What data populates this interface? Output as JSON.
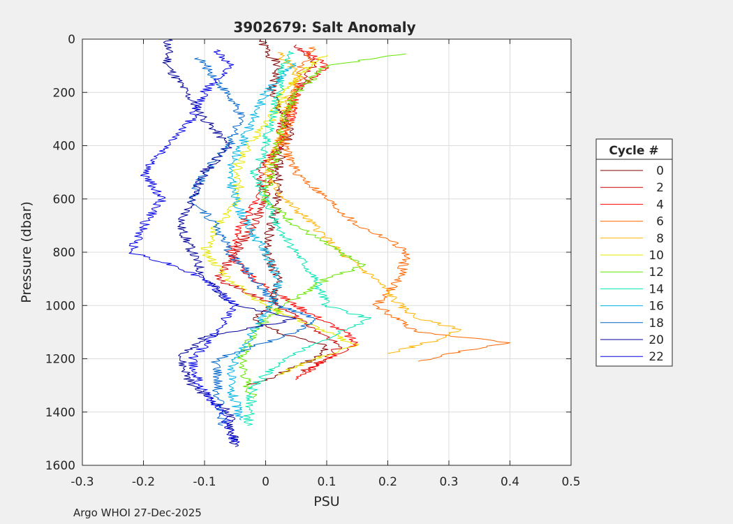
{
  "footer": "Argo WHOI 27-Dec-2025",
  "chart_data": {
    "type": "line",
    "title": "3902679: Salt Anomaly",
    "xlabel": "PSU",
    "ylabel": "Pressure (dbar)",
    "xlim": [
      -0.3,
      0.5
    ],
    "ylim": [
      0,
      1600
    ],
    "y_reversed": true,
    "grid": true,
    "xticks": [
      "-0.3",
      "-0.2",
      "-0.1",
      "0",
      "0.1",
      "0.2",
      "0.3",
      "0.4",
      "0.5"
    ],
    "yticks": [
      "0",
      "200",
      "400",
      "600",
      "800",
      "1000",
      "1200",
      "1400",
      "1600"
    ],
    "legend": {
      "title": "Cycle #",
      "placement": "outside-right",
      "entries": [
        {
          "label": "0",
          "color": "#800000"
        },
        {
          "label": "2",
          "color": "#cc0000"
        },
        {
          "label": "4",
          "color": "#ff0000"
        },
        {
          "label": "6",
          "color": "#ff6600"
        },
        {
          "label": "8",
          "color": "#ffb300"
        },
        {
          "label": "10",
          "color": "#e6e600"
        },
        {
          "label": "12",
          "color": "#66e600"
        },
        {
          "label": "14",
          "color": "#00e6b3"
        },
        {
          "label": "16",
          "color": "#00b3e6"
        },
        {
          "label": "18",
          "color": "#0066cc"
        },
        {
          "label": "20",
          "color": "#000099"
        },
        {
          "label": "22",
          "color": "#0000e6"
        }
      ]
    },
    "series": [
      {
        "name": "0",
        "color": "#800000",
        "x": [
          -0.01,
          0.02,
          0.01,
          0.03,
          0.04,
          0.03,
          0.02,
          0.02,
          0.01,
          0.0,
          0.02,
          0.01,
          -0.02,
          0.02,
          0.1,
          0.08,
          0.02,
          -0.03
        ],
        "y": [
          0,
          100,
          200,
          300,
          350,
          400,
          500,
          600,
          700,
          800,
          900,
          1000,
          1050,
          1100,
          1150,
          1200,
          1260,
          1300
        ]
      },
      {
        "name": "2",
        "color": "#cc0000",
        "x": [
          0.05,
          0.08,
          0.05,
          0.03,
          0.02,
          -0.01,
          0.0,
          -0.02,
          -0.05,
          -0.08,
          0.02,
          0.09,
          0.12,
          0.1,
          0.06
        ],
        "y": [
          20,
          100,
          200,
          300,
          400,
          500,
          600,
          700,
          800,
          900,
          1000,
          1100,
          1150,
          1200,
          1250
        ]
      },
      {
        "name": "4",
        "color": "#ff0000",
        "x": [
          0.06,
          0.1,
          0.05,
          0.04,
          0.02,
          0.01,
          -0.01,
          -0.04,
          -0.06,
          -0.02,
          0.05,
          0.13,
          0.15,
          0.1,
          0.05
        ],
        "y": [
          40,
          100,
          200,
          300,
          400,
          500,
          600,
          700,
          800,
          900,
          1000,
          1100,
          1150,
          1200,
          1280
        ]
      },
      {
        "name": "6",
        "color": "#ff6600",
        "x": [
          0.08,
          0.06,
          0.05,
          0.04,
          0.03,
          0.05,
          0.1,
          0.15,
          0.2,
          0.23,
          0.22,
          0.18,
          0.25,
          0.4,
          0.3,
          0.25
        ],
        "y": [
          30,
          100,
          200,
          300,
          400,
          500,
          600,
          700,
          750,
          800,
          900,
          1000,
          1100,
          1140,
          1180,
          1210
        ]
      },
      {
        "name": "8",
        "color": "#ffb300",
        "x": [
          0.02,
          0.05,
          0.04,
          0.03,
          0.02,
          0.0,
          0.03,
          0.08,
          0.12,
          0.18,
          0.22,
          0.25,
          0.32,
          0.28,
          0.2
        ],
        "y": [
          50,
          120,
          200,
          300,
          400,
          500,
          600,
          700,
          800,
          900,
          1000,
          1050,
          1090,
          1130,
          1180
        ]
      },
      {
        "name": "10",
        "color": "#e6e600",
        "x": [
          0.1,
          0.06,
          0.03,
          0.01,
          -0.03,
          -0.05,
          -0.04,
          -0.08,
          -0.1,
          -0.06,
          0.0,
          0.05,
          0.1,
          0.15,
          0.08,
          0.02
        ],
        "y": [
          60,
          120,
          200,
          300,
          400,
          500,
          600,
          700,
          800,
          900,
          1000,
          1050,
          1100,
          1150,
          1200,
          1260
        ]
      },
      {
        "name": "12",
        "color": "#66e600",
        "x": [
          0.23,
          0.1,
          0.05,
          0.03,
          0.02,
          0.01,
          0.0,
          0.05,
          0.12,
          0.16,
          0.1,
          0.03,
          -0.02,
          -0.04,
          -0.03,
          -0.02
        ],
        "y": [
          55,
          100,
          200,
          300,
          400,
          500,
          600,
          700,
          800,
          850,
          900,
          1000,
          1100,
          1200,
          1300,
          1350
        ]
      },
      {
        "name": "14",
        "color": "#00e6b3",
        "x": [
          0.04,
          0.03,
          0.02,
          0.01,
          0.0,
          -0.02,
          0.0,
          0.02,
          0.05,
          0.08,
          0.1,
          0.17,
          0.12,
          0.03,
          -0.02,
          -0.03
        ],
        "y": [
          45,
          100,
          200,
          300,
          400,
          500,
          600,
          700,
          800,
          900,
          1000,
          1050,
          1100,
          1200,
          1300,
          1450
        ]
      },
      {
        "name": "16",
        "color": "#00b3e6",
        "x": [
          0.05,
          0.02,
          0.0,
          -0.02,
          -0.04,
          -0.06,
          -0.05,
          -0.03,
          0.0,
          0.02,
          0.01,
          -0.02,
          -0.05,
          -0.06,
          -0.04
        ],
        "y": [
          90,
          150,
          200,
          300,
          400,
          500,
          600,
          700,
          800,
          900,
          1000,
          1100,
          1200,
          1300,
          1430
        ]
      },
      {
        "name": "18",
        "color": "#0066cc",
        "x": [
          -0.11,
          -0.08,
          -0.05,
          -0.04,
          -0.06,
          -0.1,
          -0.12,
          -0.08,
          -0.06,
          -0.02,
          0.02,
          0.08,
          0.05,
          -0.08,
          -0.08,
          -0.07
        ],
        "y": [
          70,
          150,
          250,
          300,
          400,
          500,
          600,
          700,
          800,
          900,
          1000,
          1050,
          1100,
          1200,
          1300,
          1450
        ]
      },
      {
        "name": "20",
        "color": "#000099",
        "x": [
          -0.16,
          -0.16,
          -0.13,
          -0.1,
          -0.06,
          -0.1,
          -0.12,
          -0.14,
          -0.12,
          -0.1,
          -0.05,
          0.05,
          -0.1,
          -0.14,
          -0.12,
          -0.06,
          -0.05
        ],
        "y": [
          0,
          100,
          200,
          300,
          400,
          500,
          600,
          700,
          800,
          900,
          1000,
          1050,
          1120,
          1200,
          1300,
          1400,
          1530
        ]
      },
      {
        "name": "22",
        "color": "#0000e6",
        "x": [
          -0.08,
          -0.06,
          -0.1,
          -0.12,
          -0.16,
          -0.2,
          -0.17,
          -0.2,
          -0.22,
          -0.15,
          -0.1,
          -0.05,
          -0.08,
          -0.12,
          -0.11,
          -0.07,
          -0.05
        ],
        "y": [
          40,
          100,
          200,
          300,
          400,
          500,
          600,
          700,
          800,
          850,
          900,
          1000,
          1100,
          1200,
          1300,
          1400,
          1520
        ]
      }
    ]
  }
}
